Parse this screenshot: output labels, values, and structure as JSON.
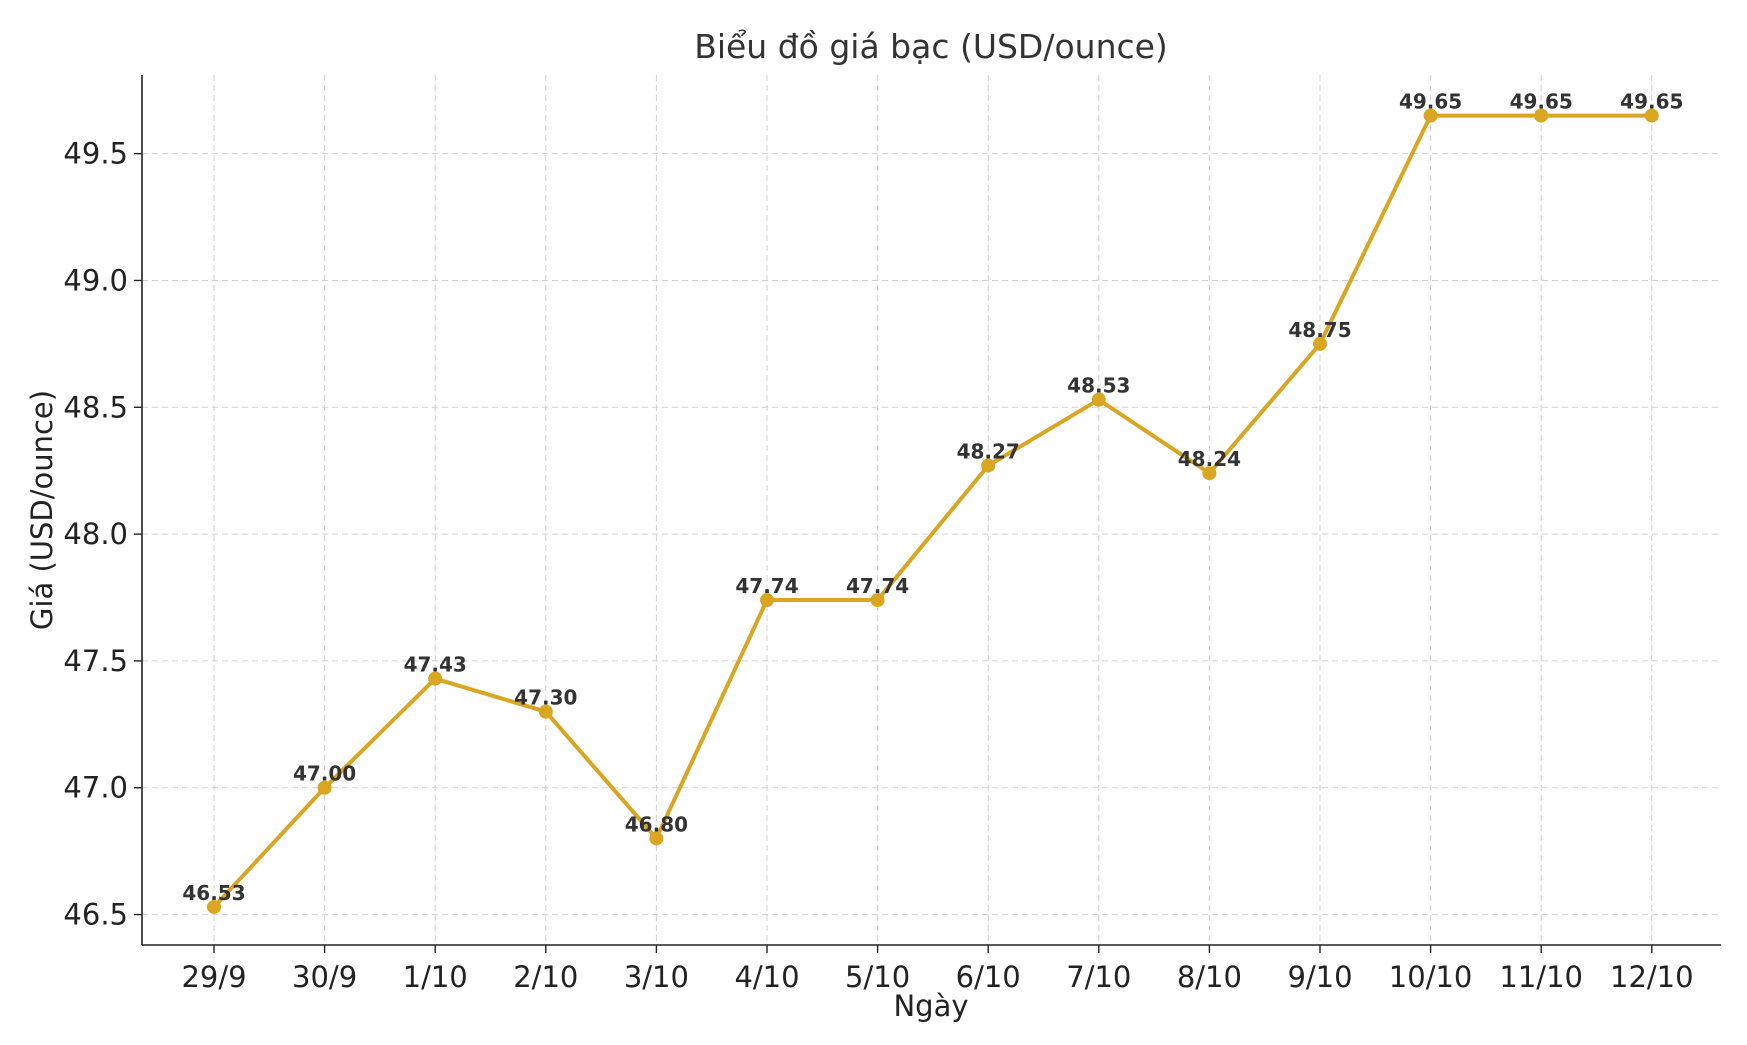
{
  "chart_data": {
    "type": "line",
    "title": "Biểu đồ giá bạc (USD/ounce)",
    "xlabel": "Ngày",
    "ylabel": "Giá (USD/ounce)",
    "categories": [
      "29/9",
      "30/9",
      "1/10",
      "2/10",
      "3/10",
      "4/10",
      "5/10",
      "6/10",
      "7/10",
      "8/10",
      "9/10",
      "10/10",
      "11/10",
      "12/10"
    ],
    "values": [
      46.53,
      47.0,
      47.43,
      47.3,
      46.8,
      47.74,
      47.74,
      48.27,
      48.53,
      48.24,
      48.75,
      49.65,
      49.65,
      49.65
    ],
    "value_labels": [
      "46.53",
      "47.00",
      "47.43",
      "47.30",
      "46.80",
      "47.74",
      "47.74",
      "48.27",
      "48.53",
      "48.24",
      "48.75",
      "49.65",
      "49.65",
      "49.65"
    ],
    "yticks": [
      46.5,
      47.0,
      47.5,
      48.0,
      48.5,
      49.0,
      49.5
    ],
    "ytick_labels": [
      "46.5",
      "47.0",
      "47.5",
      "48.0",
      "48.5",
      "49.0",
      "49.5"
    ],
    "ylim": [
      46.38,
      49.81
    ],
    "grid": true,
    "markers": true,
    "line_color": "#DAA520"
  }
}
